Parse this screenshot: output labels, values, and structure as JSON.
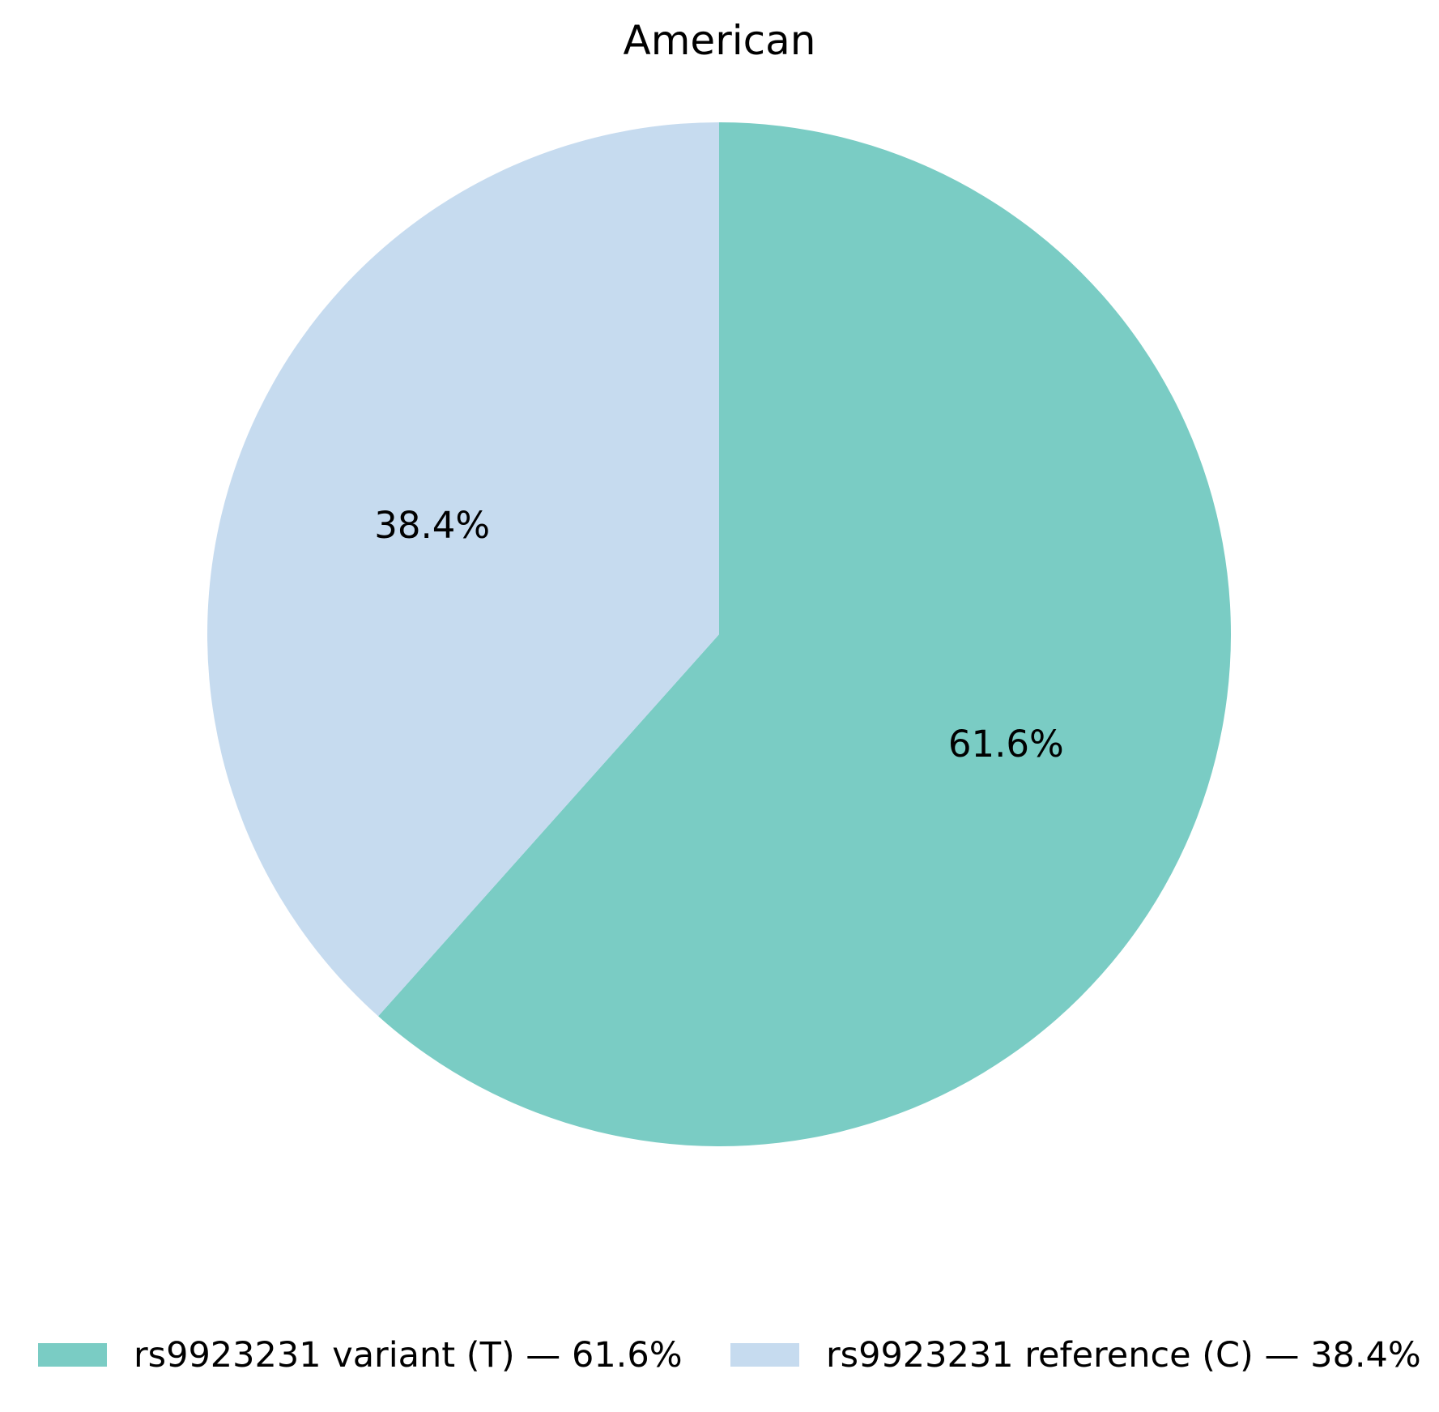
{
  "title": "American",
  "background_color": "#ffffff",
  "text_color": "#000000",
  "chart_data": {
    "type": "pie",
    "title": "American",
    "start_angle_deg": 90,
    "direction": "clockwise",
    "legend_position": "bottom",
    "autopct_format": "%.1f%%",
    "slices": [
      {
        "label": "rs9923231 variant (T)",
        "value": 61.6,
        "pct_label": "61.6%",
        "color": "#7accc4",
        "legend_label": "rs9923231 variant (T) — 61.6%"
      },
      {
        "label": "rs9923231 reference (C)",
        "value": 38.4,
        "pct_label": "38.4%",
        "color": "#c6dbef",
        "legend_label": "rs9923231 reference (C) — 38.4%"
      }
    ]
  }
}
